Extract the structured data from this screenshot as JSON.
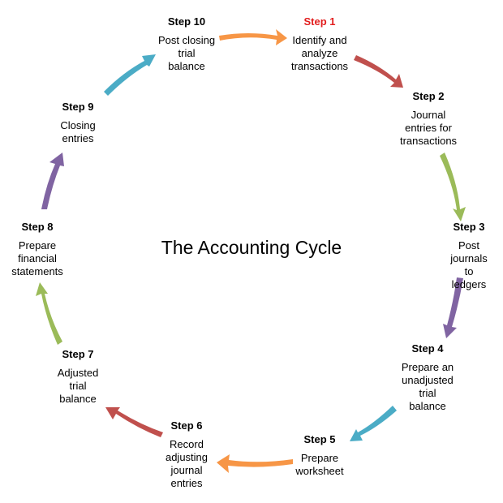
{
  "diagram": {
    "title": "The Accounting Cycle",
    "steps": [
      {
        "title": "Step 1",
        "desc": "Identify and\nanalyze\ntransactions",
        "title_color": "#e21d1d"
      },
      {
        "title": "Step 2",
        "desc": "Journal\nentries for\ntransactions",
        "title_color": "#000000"
      },
      {
        "title": "Step 3",
        "desc": "Post\njournals to\nledgers",
        "title_color": "#000000"
      },
      {
        "title": "Step 4",
        "desc": "Prepare an\nunadjusted\ntrial\nbalance",
        "title_color": "#000000"
      },
      {
        "title": "Step 5",
        "desc": "Prepare\nworksheet",
        "title_color": "#000000"
      },
      {
        "title": "Step 6",
        "desc": "Record\nadjusting\njournal\nentries",
        "title_color": "#000000"
      },
      {
        "title": "Step 7",
        "desc": "Adjusted\ntrial\nbalance",
        "title_color": "#000000"
      },
      {
        "title": "Step 8",
        "desc": "Prepare\nfinancial\nstatements",
        "title_color": "#000000"
      },
      {
        "title": "Step 9",
        "desc": "Closing\nentries",
        "title_color": "#000000"
      },
      {
        "title": "Step 10",
        "desc": "Post closing\ntrial\nbalance",
        "title_color": "#000000"
      }
    ],
    "arrows": [
      {
        "from": "Step 10",
        "to": "Step 1",
        "color": "#f79646"
      },
      {
        "from": "Step 1",
        "to": "Step 2",
        "color": "#c0504d"
      },
      {
        "from": "Step 2",
        "to": "Step 3",
        "color": "#9bbb59"
      },
      {
        "from": "Step 3",
        "to": "Step 4",
        "color": "#8064a2"
      },
      {
        "from": "Step 4",
        "to": "Step 5",
        "color": "#4bacc6"
      },
      {
        "from": "Step 5",
        "to": "Step 6",
        "color": "#f79646"
      },
      {
        "from": "Step 6",
        "to": "Step 7",
        "color": "#c0504d"
      },
      {
        "from": "Step 7",
        "to": "Step 8",
        "color": "#9bbb59"
      },
      {
        "from": "Step 8",
        "to": "Step 9",
        "color": "#8064a2"
      },
      {
        "from": "Step 9",
        "to": "Step 10",
        "color": "#4bacc6"
      }
    ]
  }
}
